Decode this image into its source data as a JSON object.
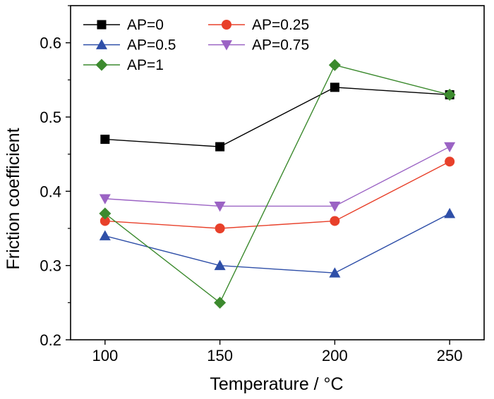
{
  "chart_data": {
    "type": "line",
    "title": "",
    "xlabel": "Temperature / °C",
    "ylabel": "Friction coefficient",
    "x": [
      100,
      150,
      200,
      250
    ],
    "xlim": [
      85,
      265
    ],
    "ylim": [
      0.2,
      0.65
    ],
    "xticks": [
      "100",
      "150",
      "200",
      "250"
    ],
    "yticks": [
      "0.2",
      "0.3",
      "0.4",
      "0.5",
      "0.6"
    ],
    "grid": false,
    "legend_position": "top-left",
    "series": [
      {
        "name": "AP=0",
        "values": [
          0.47,
          0.46,
          0.54,
          0.53
        ],
        "color": "#000000",
        "marker": "square"
      },
      {
        "name": "AP=0.25",
        "values": [
          0.36,
          0.35,
          0.36,
          0.44
        ],
        "color": "#e8402a",
        "marker": "circle"
      },
      {
        "name": "AP=0.5",
        "values": [
          0.34,
          0.3,
          0.29,
          0.37
        ],
        "color": "#2f4fa8",
        "marker": "triangle-up"
      },
      {
        "name": "AP=0.75",
        "values": [
          0.39,
          0.38,
          0.38,
          0.46
        ],
        "color": "#9b63c4",
        "marker": "triangle-down"
      },
      {
        "name": "AP=1",
        "values": [
          0.37,
          0.25,
          0.57,
          0.53
        ],
        "color": "#3c8a2e",
        "marker": "diamond"
      }
    ]
  }
}
